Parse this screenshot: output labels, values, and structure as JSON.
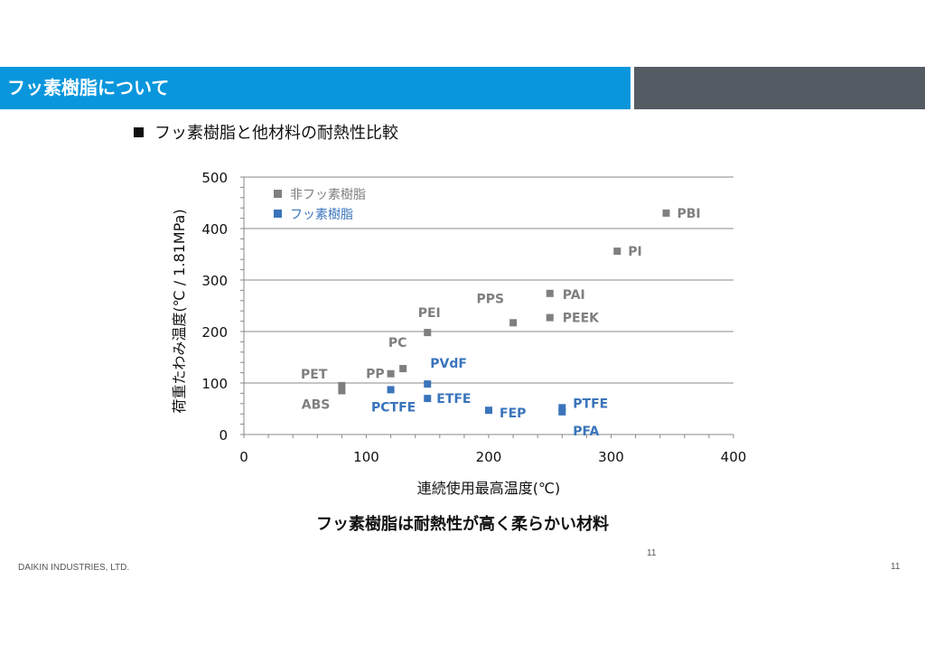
{
  "header": {
    "title": "フッ素樹脂について"
  },
  "section": {
    "bullet_text": "フッ素樹脂と他材料の耐熱性比較"
  },
  "conclusion": "フッ素樹脂は耐熱性が高く柔らかい材料",
  "footer": {
    "company": "DAIKIN INDUSTRIES, LTD.",
    "page_mid": "11",
    "page_right": "11"
  },
  "colors": {
    "header_blue": "#0a96dc",
    "header_gray": "#545b63",
    "non_fluoro": "#7f7f7f",
    "fluoro": "#3a74bb"
  },
  "chart_data": {
    "type": "scatter",
    "xlabel": "連続使用最高温度(℃)",
    "ylabel": "荷重たわみ温度(℃ / 1.81MPa)",
    "xlim": [
      0,
      400
    ],
    "ylim": [
      0,
      500
    ],
    "x_ticks": [
      "0",
      "100",
      "200",
      "300",
      "400"
    ],
    "y_ticks": [
      "0",
      "100",
      "200",
      "300",
      "400",
      "500"
    ],
    "grid": "horizontal",
    "legend_position": "top-left",
    "series": [
      {
        "name": "非フッ素樹脂",
        "color": "#7f7f7f",
        "points": [
          {
            "label": "PBI",
            "x": 345,
            "y": 430
          },
          {
            "label": "PI",
            "x": 305,
            "y": 356
          },
          {
            "label": "PAI",
            "x": 250,
            "y": 274
          },
          {
            "label": "PEEK",
            "x": 250,
            "y": 227
          },
          {
            "label": "PPS",
            "x": 220,
            "y": 217
          },
          {
            "label": "PEI",
            "x": 150,
            "y": 198
          },
          {
            "label": "PC",
            "x": 130,
            "y": 128
          },
          {
            "label": "PP",
            "x": 120,
            "y": 118
          },
          {
            "label": "PET",
            "x": 80,
            "y": 95
          },
          {
            "label": "ABS",
            "x": 80,
            "y": 85
          }
        ]
      },
      {
        "name": "フッ素樹脂",
        "color": "#3a74bb",
        "points": [
          {
            "label": "PVdF",
            "x": 150,
            "y": 98
          },
          {
            "label": "PCTFE",
            "x": 120,
            "y": 87
          },
          {
            "label": "ETFE",
            "x": 150,
            "y": 70
          },
          {
            "label": "FEP",
            "x": 200,
            "y": 47
          },
          {
            "label": "PTFE",
            "x": 260,
            "y": 52
          },
          {
            "label": "PFA",
            "x": 260,
            "y": 44
          }
        ]
      }
    ]
  }
}
